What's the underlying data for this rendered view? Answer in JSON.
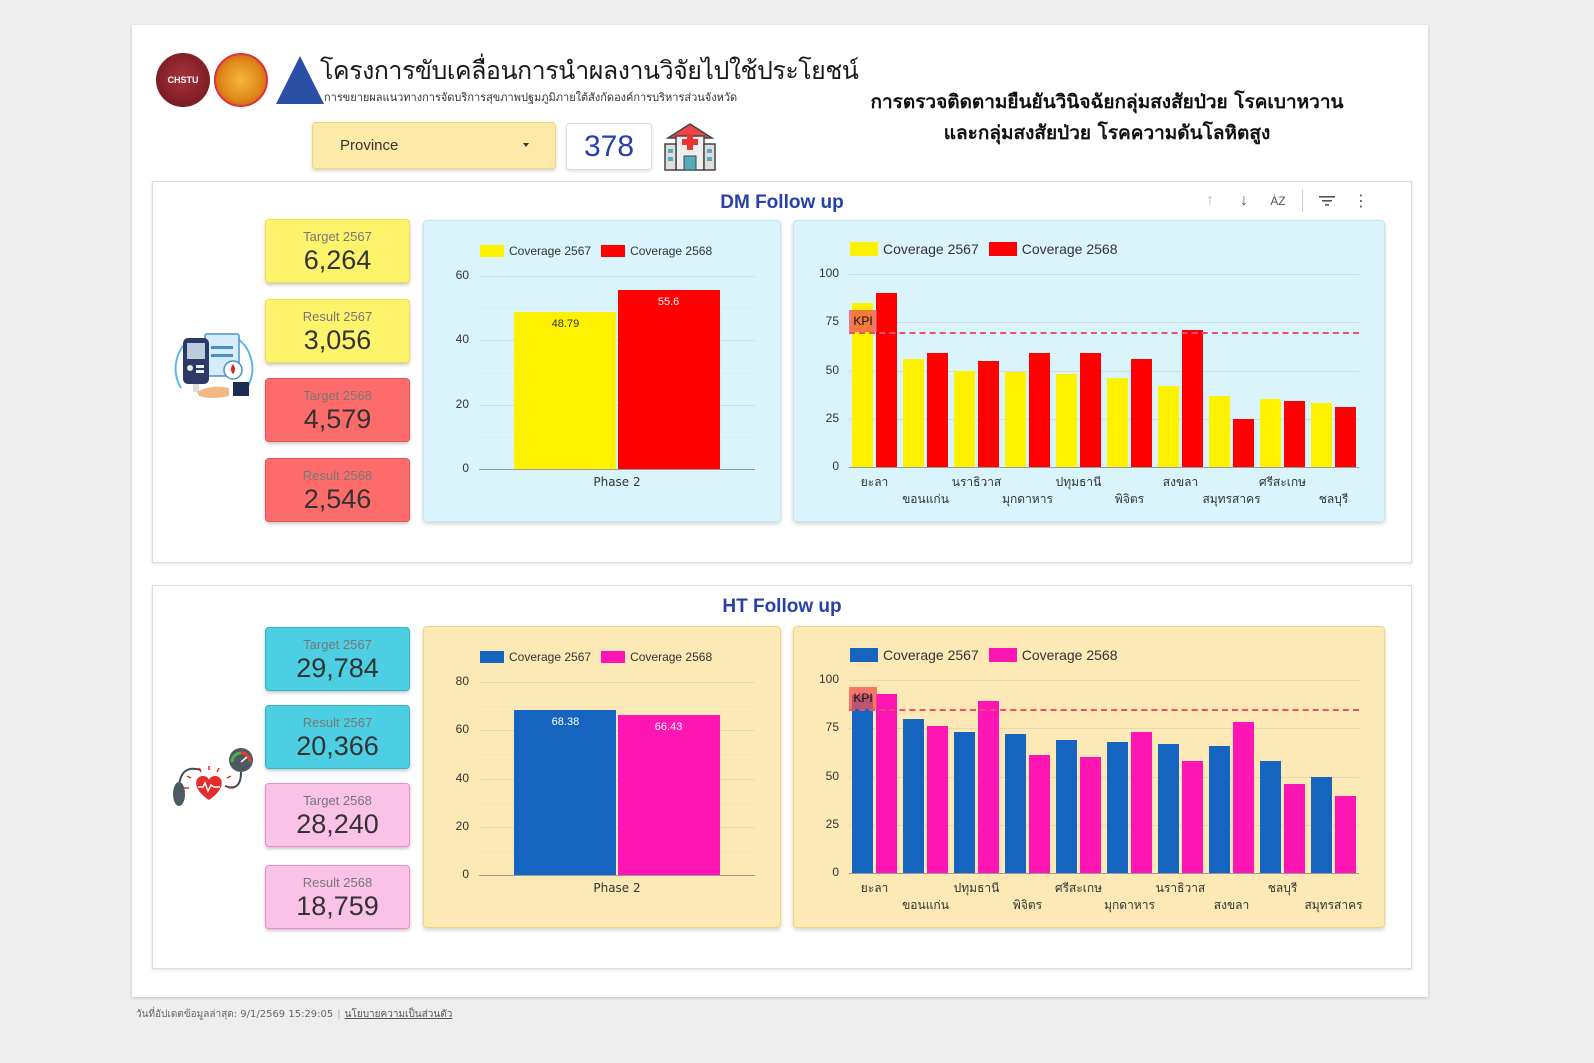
{
  "header": {
    "project_title": "โครงการขับเคลื่อนการนำผลงานวิจัยไปใช้ประโยชน์",
    "project_subtitle": "การขยายผลแนวทางการจัดบริการสุขภาพปฐมภูมิภายใต้สังกัดองค์การบริหารส่วนจังหวัด",
    "main_title_line1": "การตรวจติดตามยืนยันวินิจฉัยกลุ่มสงสัยป่วย โรคเบาหวาน",
    "main_title_line2": "และกลุ่มสงสัยป่วย โรคความดันโลหิตสูง",
    "logo1_text": "CHSTU",
    "province_select": {
      "value": "Province"
    },
    "hospital_count": "378",
    "icons": [
      "chstu-logo",
      "seal-logo",
      "triangle-logo",
      "hospital-icon",
      "chevron-down-icon"
    ]
  },
  "dm": {
    "title": "DM Follow up",
    "toolbar": [
      "sort-ascending-icon",
      "sort-descending-icon",
      "sort-az-icon",
      "filter-icon",
      "more-vert-icon"
    ],
    "cards": [
      {
        "label": "Target 2567",
        "value": "6,264",
        "color": "#fef46b",
        "border": "#f3dd52"
      },
      {
        "label": "Result 2567",
        "value": "3,056",
        "color": "#fef46b",
        "border": "#f3dd52"
      },
      {
        "label": "Target 2568",
        "value": "4,579",
        "color": "#fd6b6b",
        "border": "#e25555"
      },
      {
        "label": "Result 2568",
        "value": "2,546",
        "color": "#fd6b6b",
        "border": "#e25555"
      }
    ]
  },
  "ht": {
    "title": "HT Follow up",
    "cards": [
      {
        "label": "Target 2567",
        "value": "29,784",
        "color": "#4ccfe2",
        "border": "#37b4c8"
      },
      {
        "label": "Result 2567",
        "value": "20,366",
        "color": "#4ccfe2",
        "border": "#37b4c8"
      },
      {
        "label": "Target 2568",
        "value": "28,240",
        "color": "#fbc2e8",
        "border": "#f08bd0"
      },
      {
        "label": "Result 2568",
        "value": "18,759",
        "color": "#fbc2e8",
        "border": "#f08bd0"
      }
    ]
  },
  "chart_data": [
    {
      "id": "dm_phase",
      "type": "bar",
      "title": "DM Follow up - Phase coverage",
      "categories": [
        "Phase 2"
      ],
      "series": [
        {
          "name": "Coverage 2567",
          "color": "#fff200",
          "values": [
            48.79
          ],
          "label_color": "#333"
        },
        {
          "name": "Coverage 2568",
          "color": "#ff0000",
          "values": [
            55.6
          ],
          "label_color": "#ffffff"
        }
      ],
      "ylim": [
        0,
        60
      ],
      "yticks": [
        0,
        20,
        40,
        60
      ],
      "grid": true,
      "legend_position": "top"
    },
    {
      "id": "dm_province",
      "type": "bar",
      "title": "DM Follow up - Coverage by province",
      "categories": [
        "ยะลา",
        "ขอนแก่น",
        "นราธิวาส",
        "มุกดาหาร",
        "ปทุมธานี",
        "พิจิตร",
        "สงขลา",
        "สมุทรสาคร",
        "ศรีสะเกษ",
        "ชลบุรี"
      ],
      "series": [
        {
          "name": "Coverage 2567",
          "color": "#fff200",
          "values": [
            85,
            56,
            50,
            49,
            48,
            46,
            42,
            37,
            35,
            33
          ]
        },
        {
          "name": "Coverage 2568",
          "color": "#ff0000",
          "values": [
            90,
            59,
            55,
            59,
            59,
            56,
            71,
            25,
            34,
            31
          ]
        }
      ],
      "kpi": {
        "label": "KPI",
        "value": 70
      },
      "ylim": [
        0,
        100
      ],
      "yticks": [
        0,
        25,
        50,
        75,
        100
      ],
      "grid": true,
      "legend_position": "top"
    },
    {
      "id": "ht_phase",
      "type": "bar",
      "title": "HT Follow up - Phase coverage",
      "categories": [
        "Phase 2"
      ],
      "series": [
        {
          "name": "Coverage 2567",
          "color": "#1565c0",
          "values": [
            68.38
          ],
          "label_color": "#ffffff"
        },
        {
          "name": "Coverage 2568",
          "color": "#ff14b4",
          "values": [
            66.43
          ],
          "label_color": "#ffffff"
        }
      ],
      "ylim": [
        0,
        80
      ],
      "yticks": [
        0,
        20,
        40,
        60,
        80
      ],
      "grid": true,
      "legend_position": "top"
    },
    {
      "id": "ht_province",
      "type": "bar",
      "title": "HT Follow up - Coverage by province",
      "categories": [
        "ยะลา",
        "ขอนแก่น",
        "ปทุมธานี",
        "พิจิตร",
        "ศรีสะเกษ",
        "มุกดาหาร",
        "นราธิวาส",
        "สงขลา",
        "ชลบุรี",
        "สมุทรสาคร"
      ],
      "series": [
        {
          "name": "Coverage 2567",
          "color": "#1565c0",
          "values": [
            92,
            80,
            73,
            72,
            69,
            68,
            67,
            66,
            58,
            50
          ]
        },
        {
          "name": "Coverage 2568",
          "color": "#ff14b4",
          "values": [
            93,
            76,
            89,
            61,
            60,
            73,
            58,
            78,
            46,
            40
          ]
        }
      ],
      "kpi": {
        "label": "KPI",
        "value": 85
      },
      "ylim": [
        0,
        100
      ],
      "yticks": [
        0,
        25,
        50,
        75,
        100
      ],
      "grid": true,
      "legend_position": "top"
    }
  ],
  "footer": {
    "updated": "วันที่อัปเดตข้อมูลล่าสุด: 9/1/2569 15:29:05",
    "privacy_link": "นโยบายความเป็นส่วนตัว"
  }
}
